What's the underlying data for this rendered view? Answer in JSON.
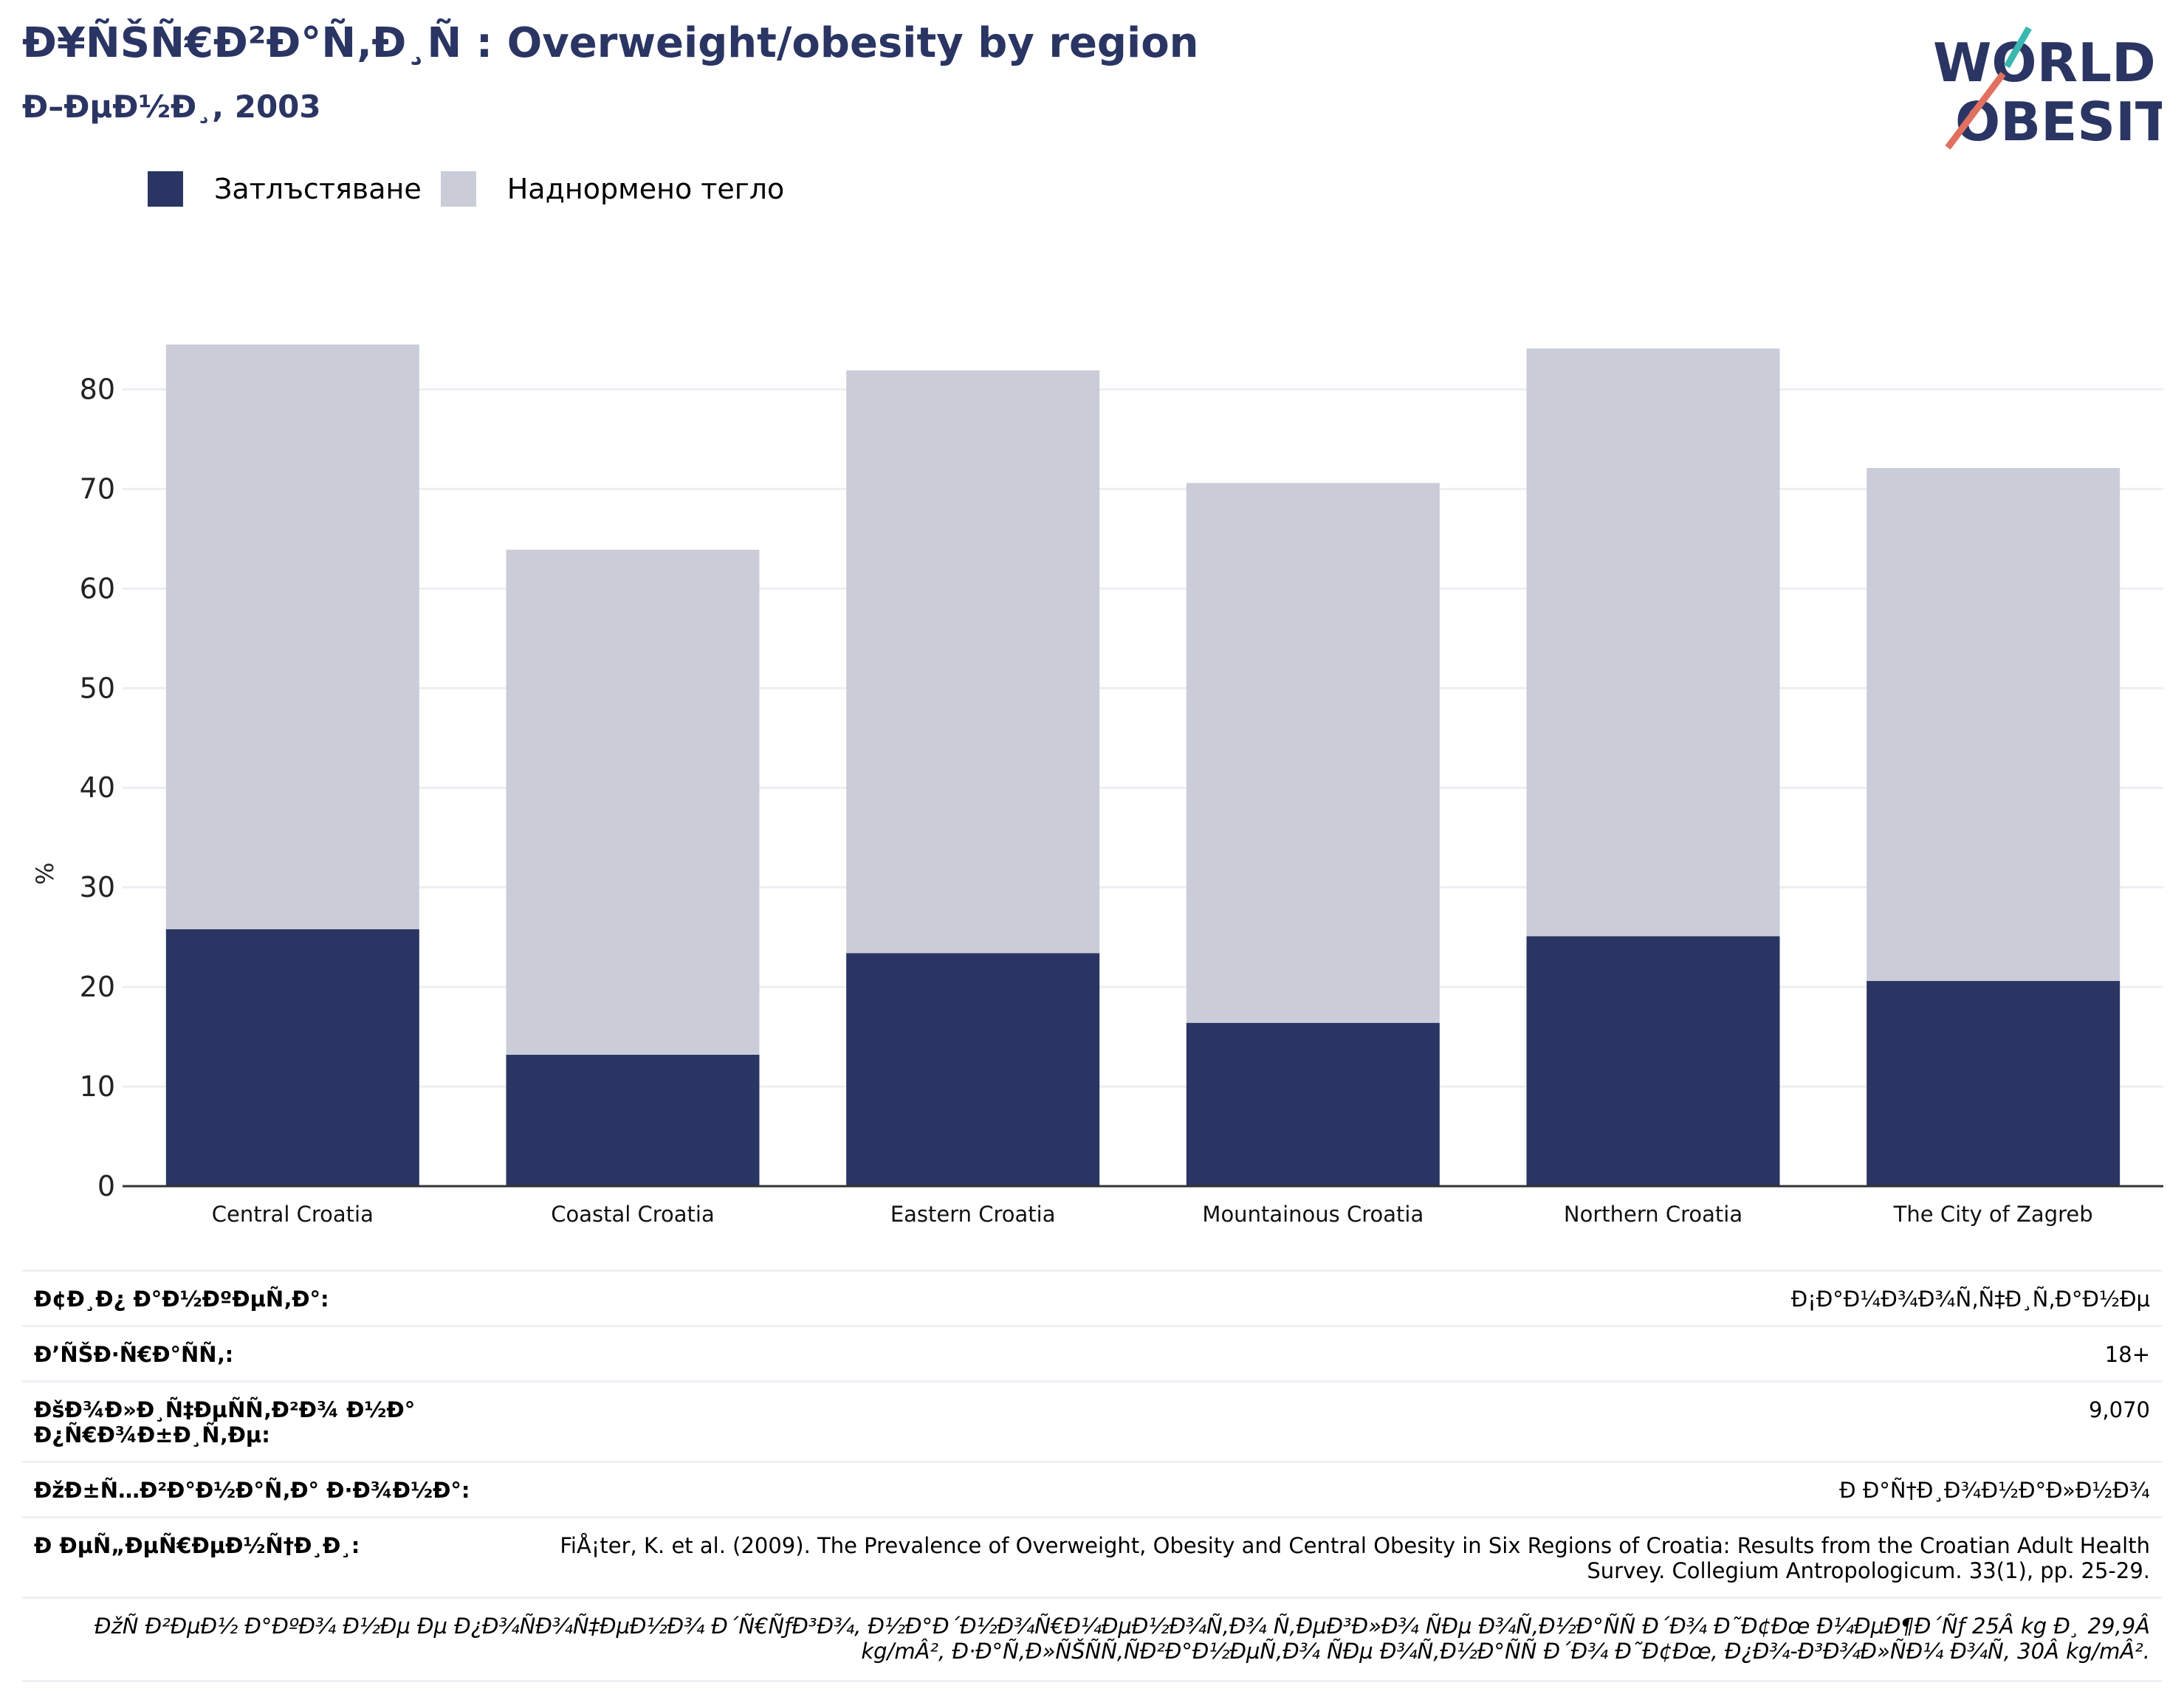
{
  "header": {
    "title": "Ð¥ÑŠÑ€Ð²Ð°Ñ‚Ð¸Ñ : Overweight/obesity by region",
    "subtitle": "Ð–ÐµÐ½Ð¸, 2003"
  },
  "logo": {
    "line1": "WORLD",
    "line2": "OBESITY",
    "colors": [
      "#2a3563",
      "#e07060",
      "#3ab8b0"
    ]
  },
  "colors": {
    "obesity": "#2a3563",
    "overweight": "#cacdd8",
    "grid": "#eceef2",
    "axis": "#333333",
    "title": "#2a3563"
  },
  "chart_data": {
    "type": "bar",
    "stacked": true,
    "categories": [
      "Central Croatia",
      "Coastal Croatia",
      "Eastern Croatia",
      "Mountainous Croatia",
      "Northern Croatia",
      "The City of Zagreb"
    ],
    "series": [
      {
        "name": "Затлъстяване",
        "values": [
          25.8,
          13.2,
          23.4,
          16.4,
          25.1,
          20.6
        ]
      },
      {
        "name": "Наднормено тегло",
        "values": [
          58.7,
          50.7,
          58.5,
          54.2,
          59.0,
          51.5
        ]
      }
    ],
    "ylabel": "%",
    "ylim": [
      0,
      85
    ],
    "yticks": [
      0,
      10,
      20,
      30,
      40,
      50,
      60,
      70,
      80
    ],
    "grid": true,
    "legend": "top-left"
  },
  "info": {
    "rows": [
      {
        "label": "Ð¢Ð¸Ð¿ Ð°Ð½ÐºÐµÑ‚Ð°:",
        "value": "Ð¡Ð°Ð¼Ð¾Ð¾Ñ‚Ñ‡Ð¸Ñ‚Ð°Ð½Ðµ"
      },
      {
        "label": "Ð’ÑŠÐ·Ñ€Ð°ÑÑ‚:",
        "value": "18+"
      },
      {
        "label": "ÐšÐ¾Ð»Ð¸Ñ‡ÐµÑÑ‚Ð²Ð¾ Ð½Ð° Ð¿Ñ€Ð¾Ð±Ð¸Ñ‚Ðµ:",
        "value": "9,070"
      },
      {
        "label": "ÐžÐ±Ñ…Ð²Ð°Ð½Ð°Ñ‚Ð° Ð·Ð¾Ð½Ð°:",
        "value": "Ð Ð°Ñ†Ð¸Ð¾Ð½Ð°Ð»Ð½Ð¾"
      },
      {
        "label": "Ð ÐµÑ„ÐµÑ€ÐµÐ½Ñ†Ð¸Ð¸:",
        "value": "FiÅ¡ter, K. et al. (2009). The Prevalence of Overweight, Obesity and Central Obesity in Six Regions of Croatia: Results from the Croatian Adult Health Survey. Collegium Antropologicum. 33(1), pp. 25-29."
      }
    ],
    "note": "ÐžÑ Ð²ÐµÐ½ Ð°ÐºÐ¾ Ð½Ðµ Ðµ Ð¿Ð¾ÑÐ¾Ñ‡ÐµÐ½Ð¾ Ð´Ñ€ÑƒÐ³Ð¾, Ð½Ð°Ð´Ð½Ð¾Ñ€Ð¼ÐµÐ½Ð¾Ñ‚Ð¾ Ñ‚ÐµÐ³Ð»Ð¾ ÑÐµ Ð¾Ñ‚Ð½Ð°ÑÑ Ð´Ð¾ Ð˜Ð¢Ðœ Ð¼ÐµÐ¶Ð´Ñƒ 25Â kg Ð¸ 29,9Â kg/mÂ², Ð·Ð°Ñ‚Ð»ÑŠÑÑ‚ÑÐ²Ð°Ð½ÐµÑ‚Ð¾ ÑÐµ Ð¾Ñ‚Ð½Ð°ÑÑ Ð´Ð¾ Ð˜Ð¢Ðœ, Ð¿Ð¾-Ð³Ð¾Ð»ÑÐ¼ Ð¾Ñ‚ 30Â kg/mÂ²."
  }
}
